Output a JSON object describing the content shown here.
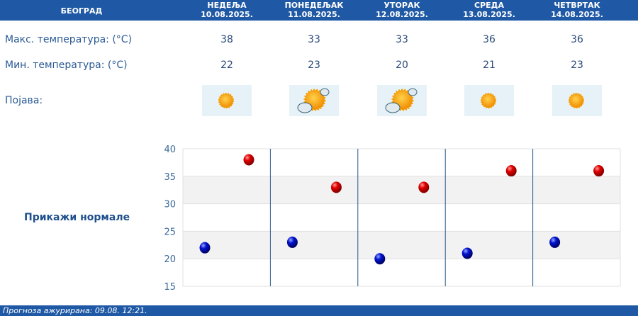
{
  "header": {
    "city": "БЕОГРАД",
    "days": [
      {
        "name": "НЕДЕЉА",
        "date": "10.08.2025."
      },
      {
        "name": "ПОНЕДЕЉАК",
        "date": "11.08.2025."
      },
      {
        "name": "УТОРАК",
        "date": "12.08.2025."
      },
      {
        "name": "СРЕДА",
        "date": "13.08.2025."
      },
      {
        "name": "ЧЕТВРТАК",
        "date": "14.08.2025."
      }
    ]
  },
  "rows": {
    "max_label": "Макс. температура: (°C)",
    "min_label": "Мин. температура: (°C)",
    "phenomenon_label": "Појава:"
  },
  "max": [
    "38",
    "33",
    "33",
    "36",
    "36"
  ],
  "min": [
    "22",
    "23",
    "20",
    "21",
    "23"
  ],
  "icons": [
    "sun-icon",
    "sun-cloud-icon",
    "sun-cloud-icon",
    "sun-icon",
    "sun-icon"
  ],
  "show_normals": "Прикажи нормале",
  "footer": "Прогноза ажурирана:  09.08. 12:21.",
  "chart_data": {
    "type": "scatter",
    "ylim": [
      15,
      40
    ],
    "yticks": [
      "15",
      "20",
      "25",
      "30",
      "35",
      "40"
    ],
    "categories": [
      "10.08.2025.",
      "11.08.2025.",
      "12.08.2025.",
      "13.08.2025.",
      "14.08.2025."
    ],
    "series": [
      {
        "values": [
          38,
          33,
          33,
          36,
          36
        ],
        "color": "#d00000"
      },
      {
        "values": [
          22,
          23,
          20,
          21,
          23
        ],
        "color": "#0010c0"
      }
    ]
  }
}
